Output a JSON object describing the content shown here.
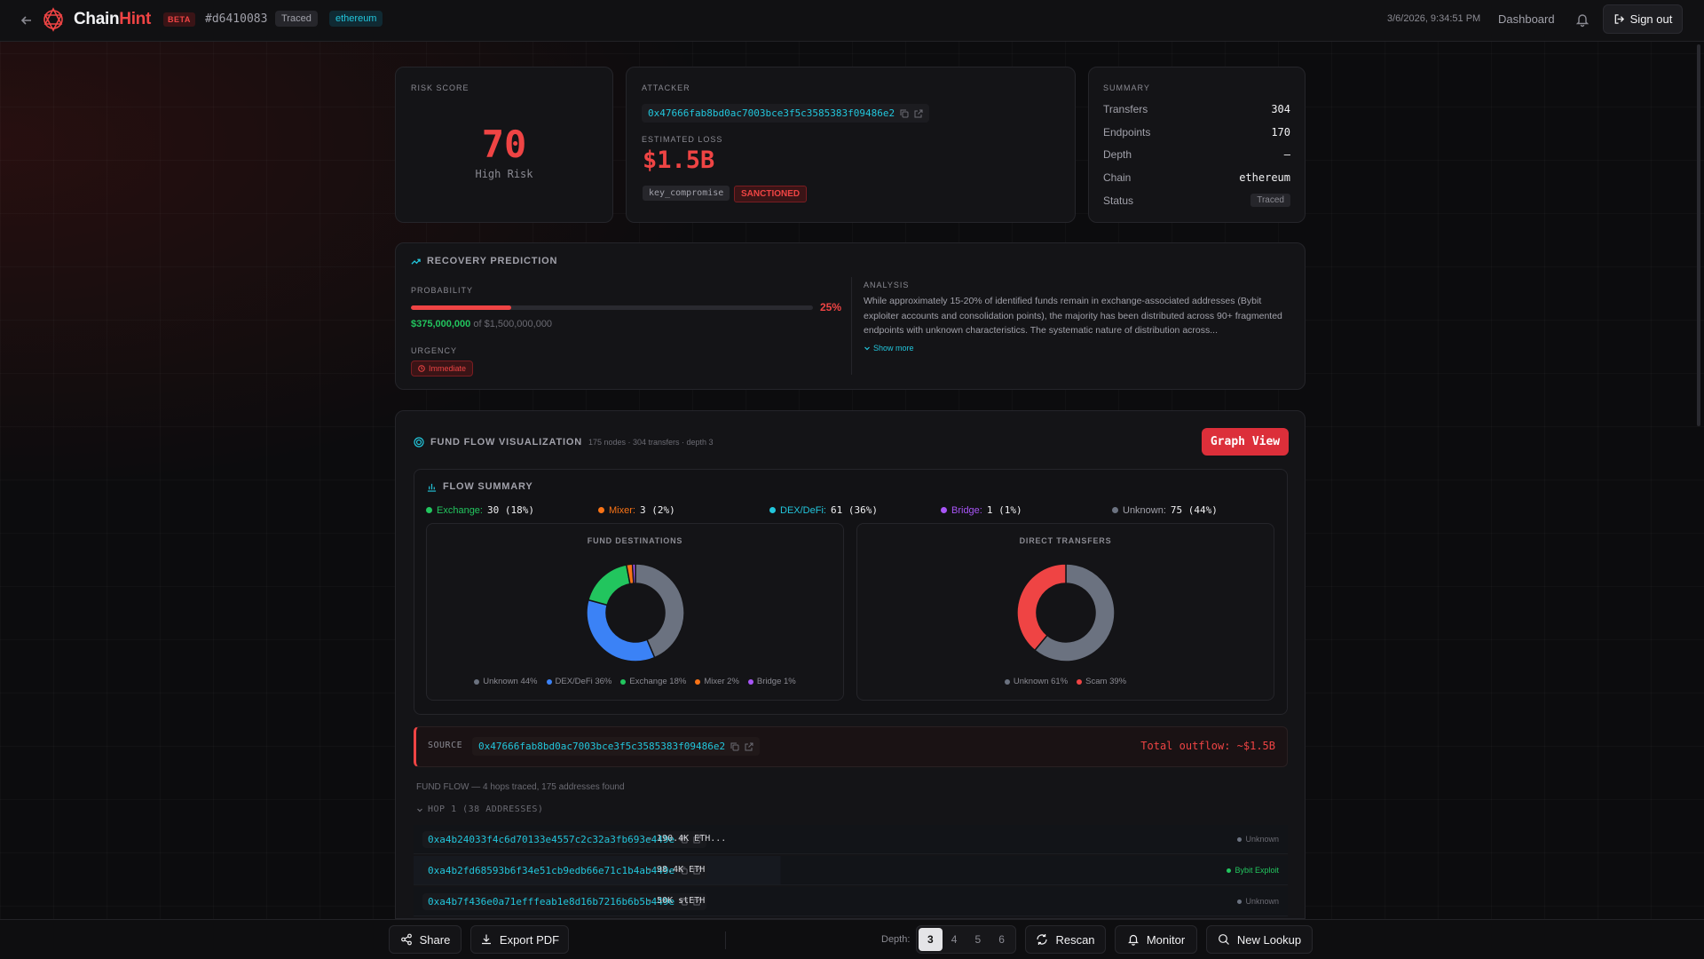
{
  "header": {
    "brand_chain": "Chain",
    "brand_hint": "Hint",
    "beta": "BETA",
    "case_id": "#d6410083",
    "status_chip": "Traced",
    "chain_chip": "ethereum",
    "timestamp": "3/6/2026, 9:34:51 PM",
    "nav_dashboard": "Dashboard",
    "sign_out": "Sign out"
  },
  "risk": {
    "label": "RISK SCORE",
    "score": "70",
    "level": "High Risk"
  },
  "attacker": {
    "label": "ATTACKER",
    "address": "0x47666fab8bd0ac7003bce3f5c3585383f09486e2",
    "loss_label": "ESTIMATED LOSS",
    "loss": "$1.5B",
    "tag_type": "key_compromise",
    "tag_sanctioned": "SANCTIONED"
  },
  "summary": {
    "label": "SUMMARY",
    "rows": [
      {
        "key": "Transfers",
        "value": "304"
      },
      {
        "key": "Endpoints",
        "value": "170"
      },
      {
        "key": "Depth",
        "value": "—"
      },
      {
        "key": "Chain",
        "value": "ethereum"
      },
      {
        "key": "Status",
        "value": "Traced"
      }
    ]
  },
  "recovery": {
    "title": "RECOVERY PREDICTION",
    "probability_label": "PROBABILITY",
    "probability_pct": "25%",
    "probability_fraction": 0.25,
    "amount_recoverable": "$375,000,000",
    "amount_total": "of $1,500,000,000",
    "urgency_label": "URGENCY",
    "urgency": "Immediate",
    "analysis_label": "ANALYSIS",
    "analysis_text": "While approximately 15-20% of identified funds remain in exchange-associated addresses (Bybit exploiter accounts and consolidation points), the majority has been distributed across 90+ fragmented endpoints with unknown characteristics. The systematic nature of distribution across...",
    "show_more": "Show more"
  },
  "fund_flow": {
    "title": "FUND FLOW VISUALIZATION",
    "meta": "175 nodes · 304 transfers · depth 3",
    "graph_button": "Graph View",
    "flow_summary_title": "FLOW SUMMARY",
    "categories": [
      {
        "name": "Exchange:",
        "value": "30 (18%)",
        "color": "#22c55e"
      },
      {
        "name": "Mixer:",
        "value": "3 (2%)",
        "color": "#f97316"
      },
      {
        "name": "DEX/DeFi:",
        "value": "61 (36%)",
        "color": "#22c6dc"
      },
      {
        "name": "Bridge:",
        "value": "1 (1%)",
        "color": "#a855f7"
      },
      {
        "name": "Unknown:",
        "value": "75 (44%)",
        "color": "#6b7280"
      }
    ],
    "destinations_title": "FUND DESTINATIONS",
    "destinations_legend": [
      "Unknown 44%",
      "DEX/DeFi 36%",
      "Exchange 18%",
      "Mixer 2%",
      "Bridge 1%"
    ],
    "direct_title": "DIRECT TRANSFERS",
    "direct_legend": [
      "Unknown 61%",
      "Scam 39%"
    ],
    "source_label": "SOURCE",
    "source_address": "0x47666fab8bd0ac7003bce3f5c3585383f09486e2",
    "total_outflow": "Total outflow: ~$1.5B",
    "hops_note": "FUND FLOW — 4 hops traced, 175 addresses found",
    "hop1_title": "HOP 1 (38 ADDRESSES)",
    "hops": [
      {
        "address": "0xa4b24033f4c6d70133e4557c2c32a3fb693e449e",
        "amount": "190.4K ETH...",
        "label": "Unknown"
      },
      {
        "address": "0xa4b2fd68593b6f34e51cb9edb66e71c1b4ab449e",
        "amount": "98.4K ETH",
        "label": "Bybit Exploit"
      },
      {
        "address": "0xa4b7f436e0a71efffeab1e8d16b7216b6b5b449e",
        "amount": "50K stETH",
        "label": "Unknown"
      }
    ]
  },
  "chart_data": [
    {
      "type": "pie",
      "title": "FUND DESTINATIONS",
      "categories": [
        "Unknown",
        "DEX/DeFi",
        "Exchange",
        "Mixer",
        "Bridge"
      ],
      "values": [
        44,
        36,
        18,
        2,
        1
      ],
      "colors": [
        "#6b7280",
        "#3b82f6",
        "#22c55e",
        "#f97316",
        "#a855f7"
      ]
    },
    {
      "type": "pie",
      "title": "DIRECT TRANSFERS",
      "categories": [
        "Unknown",
        "Scam"
      ],
      "values": [
        61,
        39
      ],
      "colors": [
        "#6b7280",
        "#ef4444"
      ]
    }
  ],
  "toolbar": {
    "share": "Share",
    "export_pdf": "Export PDF",
    "depth_label": "Depth:",
    "depth_options": [
      "3",
      "4",
      "5",
      "6"
    ],
    "rescan": "Rescan",
    "monitor": "Monitor",
    "new_lookup": "New Lookup"
  }
}
